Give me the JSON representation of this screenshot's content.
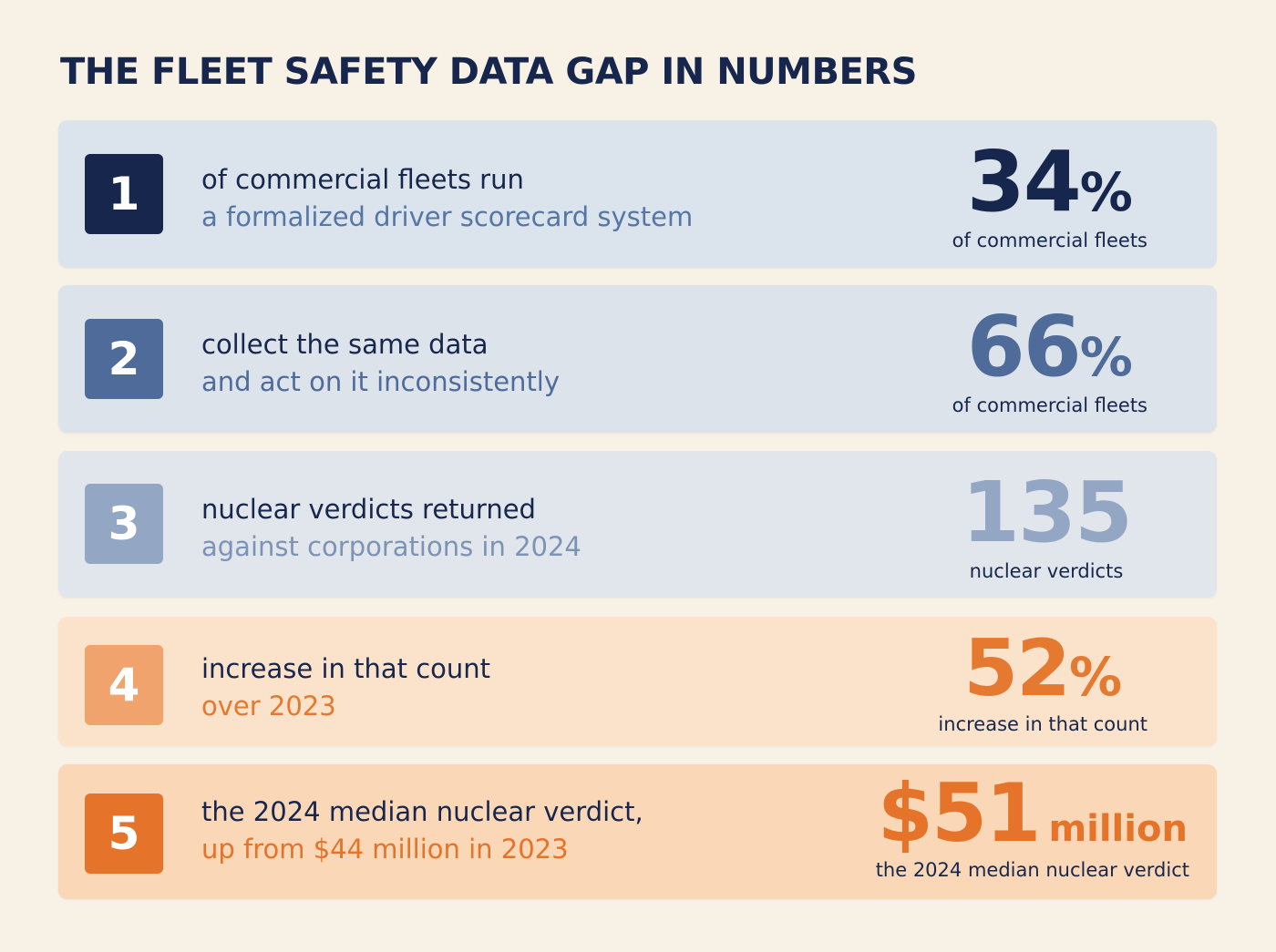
{
  "title": "THE FLEET SAFETY DATA GAP IN NUMBERS",
  "rows": [
    {
      "number": "1",
      "line1": "of commercial fleets run",
      "line2": "a formalized driver scorecard system",
      "value": "34",
      "unit": "%",
      "caption": "of commercial fleets",
      "card_color": "#dbe3ec",
      "badge_color": "#16264d",
      "accent_color": "#16264d",
      "line2_color": "#5577a6"
    },
    {
      "number": "2",
      "line1": "collect the same data",
      "line2": "and act on it inconsistently",
      "value": "66",
      "unit": "%",
      "caption": "of commercial fleets",
      "card_color": "#dde3eb",
      "badge_color": "#4f6b9a",
      "accent_color": "#4f6b9a",
      "line2_color": "#4f6b9a"
    },
    {
      "number": "3",
      "line1": "nuclear verdicts returned",
      "line2": "against corporations in 2024",
      "value": "135",
      "unit": "",
      "caption": "nuclear verdicts",
      "card_color": "#e1e6ec",
      "badge_color": "#93a7c5",
      "accent_color": "#93a7c5",
      "line2_color": "#7d93b6"
    },
    {
      "number": "4",
      "line1": "increase in that count",
      "line2": "over 2023",
      "value": "52",
      "unit": "%",
      "caption": "increase in that count",
      "card_color": "#fbe2cb",
      "badge_color": "#f0a36c",
      "accent_color": "#e5792f",
      "line2_color": "#e5792f"
    },
    {
      "number": "5",
      "line1": "the 2024 median nuclear verdict,",
      "line2": "up from $44 million in 2023",
      "value": "$51",
      "unit": "million",
      "caption": "the 2024 median nuclear verdict",
      "card_color": "#fad7b7",
      "badge_color": "#e5732a",
      "accent_color": "#e5732a",
      "line2_color": "#e5732a"
    }
  ]
}
